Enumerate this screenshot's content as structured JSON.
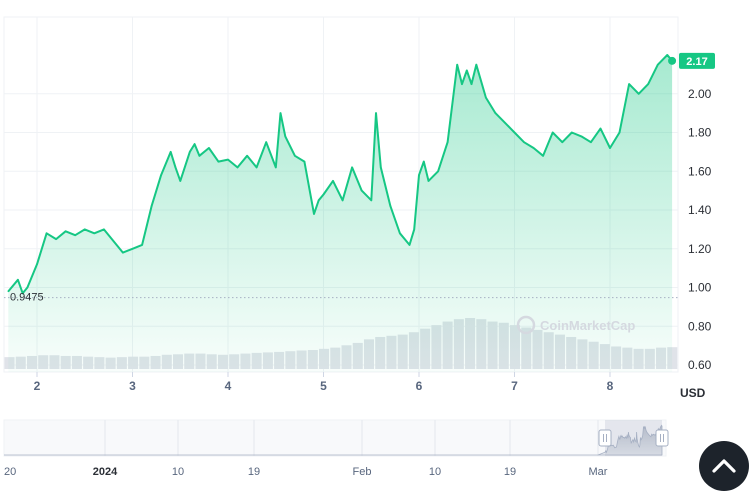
{
  "chart_data": {
    "type": "area",
    "title": "",
    "unit": "USD",
    "ylim": [
      0.6,
      2.2
    ],
    "y_ticks": [
      "2.00",
      "1.80",
      "1.60",
      "1.40",
      "1.20",
      "1.00",
      "0.80",
      "0.60"
    ],
    "x_ticks": [
      "2",
      "3",
      "4",
      "5",
      "6",
      "7",
      "8"
    ],
    "start_value_label": "0.9475",
    "start_value": 0.9475,
    "current_price_label": "2.17",
    "current_price": 2.17,
    "line_color": "#16c784",
    "watermark": "CoinMarketCap",
    "series": [
      {
        "x": [
          1.7,
          1.8,
          1.85,
          1.9,
          2.0,
          2.1,
          2.2,
          2.3,
          2.4,
          2.5,
          2.6,
          2.7,
          2.8,
          2.9,
          3.0,
          3.1,
          3.2,
          3.3,
          3.4,
          3.45,
          3.5,
          3.6,
          3.65,
          3.7,
          3.8,
          3.9,
          4.0,
          4.1,
          4.2,
          4.3,
          4.4,
          4.5,
          4.55,
          4.6,
          4.7,
          4.8,
          4.9,
          4.95,
          5.0,
          5.1,
          5.2,
          5.3,
          5.4,
          5.5,
          5.55,
          5.6,
          5.7,
          5.8,
          5.9,
          5.95,
          6.0,
          6.05,
          6.1,
          6.2,
          6.3,
          6.4,
          6.45,
          6.5,
          6.55,
          6.6,
          6.7,
          6.8,
          6.9,
          7.0,
          7.1,
          7.2,
          7.3,
          7.4,
          7.5,
          7.6,
          7.7,
          7.8,
          7.9,
          8.0,
          8.1,
          8.2,
          8.3,
          8.4,
          8.5,
          8.6,
          8.65
        ],
        "values": [
          0.98,
          1.04,
          0.97,
          1.0,
          1.12,
          1.28,
          1.25,
          1.29,
          1.27,
          1.3,
          1.28,
          1.3,
          1.24,
          1.18,
          1.2,
          1.22,
          1.42,
          1.58,
          1.7,
          1.62,
          1.55,
          1.7,
          1.74,
          1.68,
          1.72,
          1.65,
          1.66,
          1.62,
          1.68,
          1.62,
          1.75,
          1.62,
          1.9,
          1.78,
          1.68,
          1.65,
          1.38,
          1.45,
          1.48,
          1.55,
          1.45,
          1.62,
          1.5,
          1.45,
          1.9,
          1.62,
          1.42,
          1.28,
          1.22,
          1.3,
          1.58,
          1.65,
          1.55,
          1.6,
          1.75,
          2.15,
          2.05,
          2.12,
          2.05,
          2.15,
          1.98,
          1.9,
          1.85,
          1.8,
          1.75,
          1.72,
          1.68,
          1.8,
          1.75,
          1.8,
          1.78,
          1.75,
          1.82,
          1.72,
          1.8,
          2.05,
          2.0,
          2.05,
          2.15,
          2.2,
          2.17
        ]
      }
    ],
    "volume_values": [
      0.5,
      0.52,
      0.55,
      0.58,
      0.58,
      0.55,
      0.55,
      0.52,
      0.5,
      0.48,
      0.5,
      0.52,
      0.52,
      0.55,
      0.6,
      0.62,
      0.65,
      0.65,
      0.62,
      0.6,
      0.62,
      0.65,
      0.68,
      0.7,
      0.72,
      0.75,
      0.78,
      0.8,
      0.85,
      0.9,
      1.0,
      1.1,
      1.25,
      1.35,
      1.4,
      1.45,
      1.55,
      1.7,
      1.85,
      2.0,
      2.1,
      2.15,
      2.1,
      2.0,
      1.95,
      1.85,
      1.75,
      1.65,
      1.55,
      1.45,
      1.35,
      1.25,
      1.15,
      1.05,
      0.95,
      0.9,
      0.85,
      0.85,
      0.9,
      0.92
    ],
    "navigator": {
      "labels": [
        "20",
        "2024",
        "10",
        "19",
        "Feb",
        "10",
        "19",
        "Mar"
      ],
      "bold_labels": [
        "2024"
      ]
    }
  }
}
